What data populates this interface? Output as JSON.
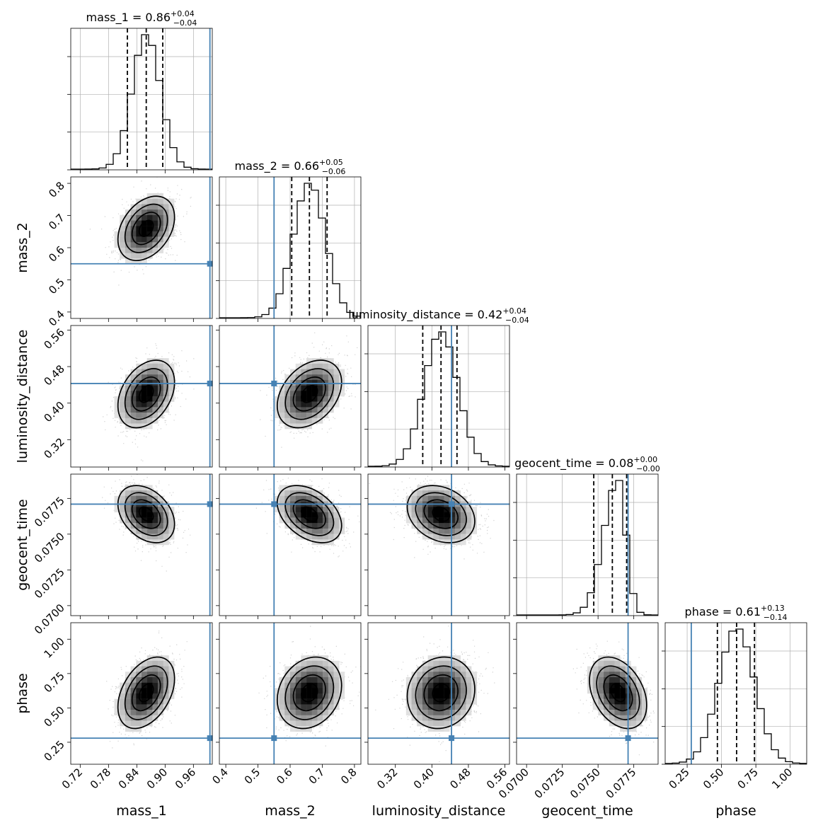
{
  "colors": {
    "truth": "#4682b4",
    "ink": "#000000",
    "grid": "#b0b0b0",
    "points": "#9a9a9a"
  },
  "chart_data": {
    "type": "corner",
    "grid": true,
    "parameters": [
      {
        "name": "mass_1",
        "axis_label": "mass_1",
        "title": {
          "prefix": "mass_1 = 0.86",
          "upper": "+0.04",
          "lower": "−0.04"
        },
        "range": [
          0.7,
          1.0
        ],
        "ticks": [
          0.72,
          0.78,
          0.84,
          0.9,
          0.96
        ],
        "tick_labels": [
          "0.72",
          "0.78",
          "0.84",
          "0.90",
          "0.96"
        ],
        "mean": 0.86,
        "sigma": 0.03,
        "quantiles": [
          0.82,
          0.86,
          0.895
        ],
        "truth": 0.995
      },
      {
        "name": "mass_2",
        "axis_label": "mass_2",
        "title": {
          "prefix": "mass_2 = 0.66",
          "upper": "+0.05",
          "lower": "−0.06"
        },
        "range": [
          0.38,
          0.82
        ],
        "ticks": [
          0.4,
          0.5,
          0.6,
          0.7,
          0.8
        ],
        "tick_labels": [
          "0.4",
          "0.5",
          "0.6",
          "0.7",
          "0.8"
        ],
        "mean": 0.66,
        "sigma": 0.05,
        "quantiles": [
          0.605,
          0.66,
          0.715
        ],
        "truth": 0.55
      },
      {
        "name": "luminosity_distance",
        "axis_label": "luminosity_distance",
        "title": {
          "prefix": "luminosity_distance = 0.42",
          "upper": "+0.04",
          "lower": "−0.04"
        },
        "range": [
          0.26,
          0.57
        ],
        "ticks": [
          0.32,
          0.4,
          0.48,
          0.56
        ],
        "tick_labels": [
          "0.32",
          "0.40",
          "0.48",
          "0.56"
        ],
        "mean": 0.42,
        "sigma": 0.037,
        "quantiles": [
          0.38,
          0.42,
          0.455
        ],
        "truth": 0.443
      },
      {
        "name": "geocent_time",
        "axis_label": "geocent_time",
        "title": {
          "prefix": "geocent_time = 0.08",
          "upper": "+0.00",
          "lower": "−0.00"
        },
        "range": [
          0.0693,
          0.0792
        ],
        "ticks": [
          0.07,
          0.0725,
          0.075,
          0.0775
        ],
        "tick_labels": [
          "0.0700",
          "0.0725",
          "0.0750",
          "0.0775"
        ],
        "mean": 0.0764,
        "sigma": 0.001,
        "quantiles": [
          0.0747,
          0.076,
          0.077
        ],
        "truth": 0.0771
      },
      {
        "name": "phase",
        "axis_label": "phase",
        "title": {
          "prefix": "phase = 0.61",
          "upper": "+0.13",
          "lower": "−0.14"
        },
        "range": [
          0.09,
          1.12
        ],
        "ticks": [
          0.25,
          0.5,
          0.75,
          1.0
        ],
        "tick_labels": [
          "0.25",
          "0.50",
          "0.75",
          "1.00"
        ],
        "mean": 0.61,
        "sigma": 0.13,
        "quantiles": [
          0.47,
          0.61,
          0.74
        ],
        "truth": 0.28
      }
    ],
    "correlations": {
      "mass_1|mass_2": 0.35,
      "mass_1|luminosity_distance": 0.35,
      "mass_2|luminosity_distance": 0.35,
      "mass_1|geocent_time": -0.35,
      "mass_2|geocent_time": -0.4,
      "luminosity_distance|geocent_time": -0.25,
      "mass_1|phase": 0.4,
      "mass_2|phase": 0.2,
      "luminosity_distance|phase": 0.1,
      "geocent_time|phase": -0.35
    }
  }
}
